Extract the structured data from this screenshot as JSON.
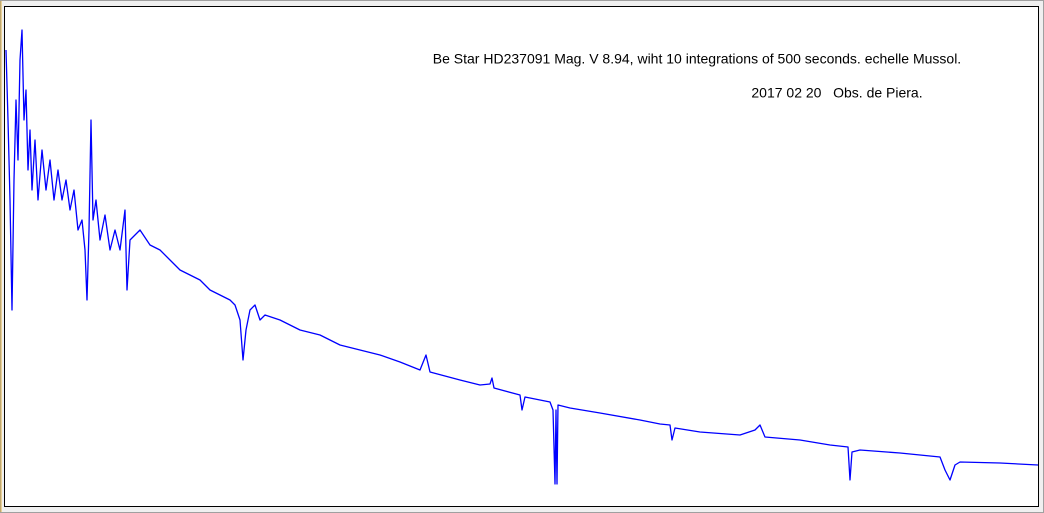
{
  "chart_data": {
    "type": "line",
    "title": "Be Star HD237091 Mag. V 8.94, wiht 10 integrations of 500 seconds. echelle Mussol.",
    "subtitle": "2017 02 20   Obs. de Piera.",
    "x": [
      6,
      8,
      10,
      12,
      14,
      16,
      18,
      20,
      22,
      24,
      26,
      28,
      30,
      32,
      35,
      38,
      42,
      46,
      50,
      54,
      58,
      62,
      66,
      70,
      74,
      78,
      82,
      85,
      87,
      89,
      91,
      93,
      96,
      100,
      105,
      110,
      115,
      120,
      125,
      127,
      130,
      140,
      150,
      160,
      170,
      180,
      190,
      200,
      210,
      220,
      230,
      235,
      240,
      243,
      246,
      250,
      255,
      260,
      265,
      280,
      300,
      320,
      340,
      360,
      380,
      400,
      420,
      426,
      430,
      460,
      480,
      490,
      492,
      494,
      520,
      522,
      525,
      550,
      553,
      555,
      556,
      557,
      558,
      570,
      600,
      640,
      660,
      670,
      672,
      675,
      700,
      740,
      755,
      760,
      765,
      800,
      830,
      848,
      850,
      852,
      860,
      900,
      940,
      945,
      950,
      955,
      960,
      1000,
      1038
    ],
    "values": [
      91.4,
      77.4,
      61.4,
      39.4,
      65.4,
      81.4,
      69.4,
      89.4,
      95.4,
      77.4,
      83.4,
      67.4,
      75.4,
      63.4,
      73.4,
      61.4,
      71.4,
      63.4,
      69.4,
      61.4,
      67.4,
      61.4,
      65.4,
      59.4,
      63.4,
      55.4,
      57.4,
      51.4,
      41.4,
      55.4,
      77.4,
      57.4,
      61.4,
      53.4,
      58.4,
      51.4,
      55.4,
      51.4,
      59.4,
      43.4,
      53.4,
      55.4,
      52.4,
      51.4,
      49.4,
      47.4,
      46.4,
      45.4,
      43.4,
      42.4,
      41.4,
      40.4,
      37.4,
      29.4,
      35.4,
      39.4,
      40.4,
      37.4,
      38.4,
      37.4,
      35.4,
      34.4,
      32.4,
      31.4,
      30.4,
      29,
      27.4,
      30.4,
      27,
      25.4,
      24.4,
      24.6,
      25.8,
      23.8,
      22.4,
      19.4,
      22,
      21,
      19.4,
      4.6,
      19.4,
      4.6,
      20.4,
      19.8,
      18.8,
      17.4,
      16.6,
      16.4,
      13.4,
      15.8,
      15,
      14.4,
      15.4,
      16.4,
      14,
      13.4,
      12.4,
      12,
      5.4,
      11,
      11.4,
      10.8,
      10,
      7.4,
      5.4,
      8.4,
      9,
      8.8,
      8.4
    ],
    "color": "#0000ff",
    "xlim": [
      5,
      1038
    ],
    "ylim": [
      0,
      100
    ]
  }
}
